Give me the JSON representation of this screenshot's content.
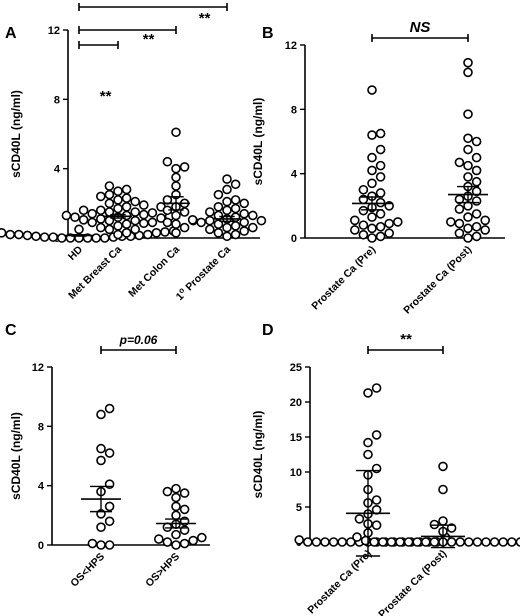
{
  "chart_data": [
    {
      "panel": "A",
      "type": "scatter",
      "ylabel": "sCD40L (ng/ml)",
      "ylim": [
        0,
        12
      ],
      "yticks": [
        0,
        4,
        8,
        12
      ],
      "categories": [
        "HD",
        "Met Breast Ca",
        "Met Colon Ca",
        "1° Prostate Ca"
      ],
      "category_labels": [
        {
          "main": "HD"
        },
        {
          "main": "Met Breast Ca"
        },
        {
          "main": "Met Colon Ca"
        },
        {
          "main": "1",
          "sup": "o",
          "rest": " Prostate Ca"
        }
      ],
      "points": [
        [
          0.0,
          0.05,
          0.1,
          0.15,
          0.2,
          0.3,
          0.4,
          0.4,
          0.45,
          0.5,
          0.05,
          0.1,
          0.0,
          0.2,
          0.0,
          0.0,
          0.1,
          0.35,
          0.0,
          0.05,
          0.2,
          0.3,
          0.0,
          0.15
        ],
        [
          0.2,
          0.3,
          0.5,
          0.6,
          0.7,
          0.8,
          0.85,
          0.9,
          1.0,
          1.05,
          1.1,
          1.15,
          1.2,
          1.25,
          1.3,
          1.35,
          1.4,
          1.45,
          1.5,
          1.6,
          1.7,
          1.8,
          1.9,
          2.0,
          2.1,
          2.2,
          2.3,
          2.5,
          2.7,
          3.0,
          0.5,
          0.9,
          1.0,
          1.2,
          1.3,
          1.5,
          1.6,
          1.8,
          2.4,
          2.8
        ],
        [
          0.3,
          0.6,
          0.8,
          1.0,
          1.3,
          1.5,
          1.8,
          2.0,
          2.2,
          2.5,
          3.0,
          3.5,
          4.0,
          4.1,
          4.4,
          6.1,
          0.9,
          1.6
        ],
        [
          0.1,
          0.2,
          0.4,
          0.5,
          0.6,
          0.7,
          0.8,
          0.9,
          1.0,
          1.05,
          1.1,
          1.2,
          1.3,
          1.5,
          1.6,
          1.7,
          1.8,
          2.0,
          2.2,
          2.5,
          2.8,
          3.1,
          3.4,
          0.3,
          0.6,
          0.9,
          1.0,
          1.4,
          2.1,
          1.3
        ]
      ],
      "means": [
        0.15,
        1.25,
        2.0,
        1.1
      ],
      "sems": [
        0.04,
        0.1,
        0.38,
        0.14
      ],
      "comparisons": [
        {
          "from": 0,
          "to": 1,
          "label": "**"
        },
        {
          "from": 0,
          "to": 2,
          "label": "**"
        },
        {
          "from": 0,
          "to": 3,
          "label": "**"
        }
      ]
    },
    {
      "panel": "B",
      "type": "scatter",
      "ylabel": "sCD40L (ng/ml)",
      "ylim": [
        0,
        12
      ],
      "yticks": [
        0,
        4,
        8,
        12
      ],
      "categories": [
        "Prostate Ca (Pre)",
        "Prostate Ca (Post)"
      ],
      "points": [
        [
          0.0,
          0.1,
          0.2,
          0.3,
          0.5,
          0.6,
          0.7,
          0.9,
          1.0,
          1.1,
          1.3,
          1.5,
          1.7,
          1.9,
          2.0,
          2.2,
          2.4,
          2.6,
          2.8,
          3.0,
          3.4,
          3.8,
          4.2,
          4.5,
          5.0,
          5.5,
          6.4,
          6.5,
          9.2,
          0.8
        ],
        [
          0.0,
          0.1,
          0.3,
          0.5,
          0.7,
          0.9,
          1.1,
          1.3,
          1.5,
          1.8,
          2.0,
          2.3,
          2.6,
          2.9,
          3.2,
          3.5,
          3.8,
          4.2,
          4.5,
          5.0,
          5.5,
          6.0,
          6.2,
          7.7,
          10.3,
          10.9,
          0.6,
          2.4,
          4.7,
          1.0
        ]
      ],
      "means": [
        2.15,
        2.7
      ],
      "sems": [
        0.4,
        0.5
      ],
      "comparisons": [
        {
          "from": 0,
          "to": 1,
          "label": "NS"
        }
      ]
    },
    {
      "panel": "C",
      "type": "scatter",
      "ylabel": "sCD40L (ng/ml)",
      "ylim": [
        0,
        12
      ],
      "yticks": [
        0,
        4,
        8,
        12
      ],
      "categories": [
        "OS<HPS",
        "OS>HPS"
      ],
      "points": [
        [
          0.0,
          0.0,
          0.1,
          1.2,
          1.6,
          2.1,
          2.6,
          3.6,
          4.1,
          5.7,
          6.2,
          6.5,
          8.8,
          9.2
        ],
        [
          0.0,
          0.1,
          0.2,
          0.3,
          0.4,
          0.5,
          0.7,
          1.0,
          1.2,
          1.4,
          1.6,
          2.0,
          2.4,
          2.6,
          3.2,
          3.5,
          3.6,
          3.8
        ]
      ],
      "means": [
        3.1,
        1.45
      ],
      "sems": [
        0.85,
        0.3
      ],
      "comparisons": [
        {
          "from": 0,
          "to": 1,
          "label": "p=0.06"
        }
      ]
    },
    {
      "panel": "D",
      "type": "scatter",
      "ylabel": "sCD40L  (ng/ml)",
      "ylim": [
        0,
        25
      ],
      "yticks": [
        0,
        5,
        10,
        15,
        20,
        25
      ],
      "categories": [
        "Prostate Ca (Pre)",
        "Prostate Ca (Post)"
      ],
      "points": [
        [
          0.0,
          0.0,
          0.0,
          0.0,
          0.0,
          0.0,
          0.0,
          0.0,
          0.0,
          0.0,
          0.0,
          0.0,
          0.0,
          0.0,
          0.0,
          0.0,
          0.3,
          0.7,
          1.3,
          2.4,
          2.6,
          3.3,
          4.0,
          4.6,
          5.6,
          6.0,
          7.5,
          9.6,
          10.5,
          12.5,
          14.2,
          15.3,
          21.3,
          22.0
        ],
        [
          0.0,
          0.0,
          0.0,
          0.0,
          0.0,
          0.0,
          0.0,
          0.0,
          0.0,
          0.0,
          0.0,
          0.0,
          0.0,
          0.0,
          0.0,
          0.0,
          0.0,
          0.0,
          0.2,
          0.4,
          0.7,
          1.0,
          1.5,
          2.0,
          2.5,
          3.0,
          7.5,
          10.8
        ]
      ],
      "means": [
        4.1,
        0.8
      ],
      "sems": [
        6.1,
        1.6
      ],
      "comparisons": [
        {
          "from": 0,
          "to": 1,
          "label": "**"
        }
      ]
    }
  ]
}
